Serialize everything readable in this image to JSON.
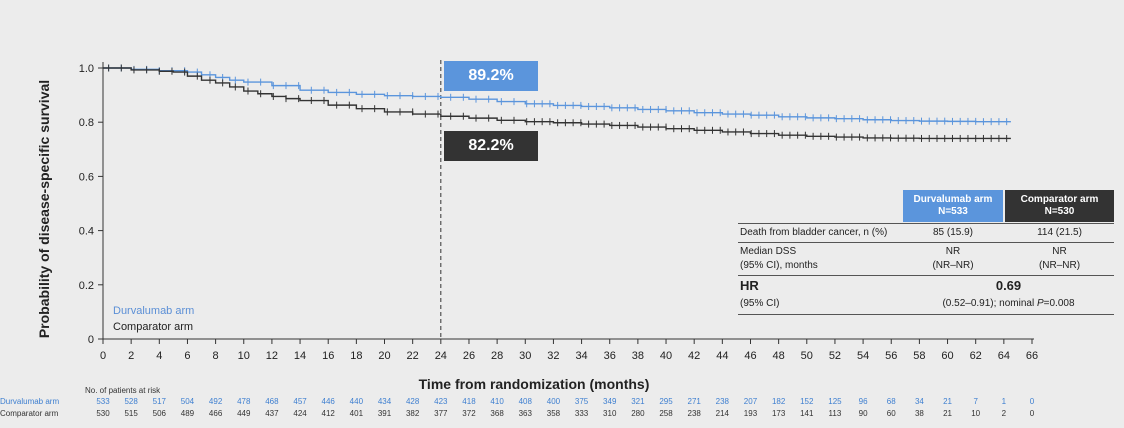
{
  "colors": {
    "durvalumab": "#5b95dc",
    "comparator": "#333333",
    "background": "#ececec"
  },
  "chart_data": {
    "type": "line",
    "title": "",
    "xlabel": "Time from randomization (months)",
    "ylabel": "Probability of disease-specific survival",
    "xlim": [
      0,
      66
    ],
    "ylim": [
      0,
      1.0
    ],
    "x_ticks": [
      0,
      2,
      4,
      6,
      8,
      10,
      12,
      14,
      16,
      18,
      20,
      22,
      24,
      26,
      28,
      30,
      32,
      34,
      36,
      38,
      40,
      42,
      44,
      46,
      48,
      50,
      52,
      54,
      56,
      58,
      60,
      62,
      64,
      66
    ],
    "y_ticks": [
      0,
      0.2,
      0.4,
      0.6,
      0.8,
      1.0
    ],
    "y_tick_labels": [
      "0",
      "0.2",
      "0.4",
      "0.6",
      "0.8",
      "1.0"
    ],
    "reference_line_x": 24,
    "series": [
      {
        "name": "Durvalumab arm",
        "x": [
          0,
          2,
          4,
          5,
          6,
          7,
          8,
          9,
          10,
          12,
          14,
          16,
          18,
          20,
          22,
          24,
          26,
          28,
          30,
          32,
          34,
          36,
          38,
          40,
          42,
          44,
          46,
          48,
          50,
          52,
          54,
          56,
          58,
          60,
          62,
          64.5
        ],
        "y": [
          1.0,
          0.995,
          0.99,
          0.99,
          0.985,
          0.975,
          0.965,
          0.955,
          0.948,
          0.935,
          0.918,
          0.91,
          0.903,
          0.898,
          0.895,
          0.892,
          0.885,
          0.876,
          0.868,
          0.862,
          0.858,
          0.853,
          0.847,
          0.842,
          0.835,
          0.83,
          0.826,
          0.82,
          0.816,
          0.813,
          0.809,
          0.806,
          0.804,
          0.803,
          0.802,
          0.802
        ]
      },
      {
        "name": "Comparator arm",
        "x": [
          0,
          2,
          4,
          5,
          6,
          7,
          8,
          9,
          10,
          11,
          12,
          13,
          14,
          16,
          18,
          20,
          22,
          24,
          26,
          28,
          30,
          32,
          34,
          36,
          38,
          40,
          42,
          44,
          46,
          48,
          50,
          52,
          54,
          56,
          58,
          60,
          62,
          64.5
        ],
        "y": [
          1.0,
          0.993,
          0.988,
          0.985,
          0.97,
          0.955,
          0.945,
          0.93,
          0.915,
          0.905,
          0.895,
          0.887,
          0.88,
          0.863,
          0.85,
          0.838,
          0.83,
          0.822,
          0.815,
          0.807,
          0.802,
          0.798,
          0.793,
          0.788,
          0.782,
          0.776,
          0.77,
          0.764,
          0.758,
          0.752,
          0.748,
          0.745,
          0.742,
          0.741,
          0.74,
          0.74,
          0.74,
          0.74
        ]
      }
    ],
    "callouts": {
      "durvalumab": "89.2%",
      "comparator": "82.2%"
    },
    "legend": [
      "Durvalumab arm",
      "Comparator arm"
    ]
  },
  "risk_table": {
    "title": "No. of patients at risk",
    "durvalumab_label": "Durvalumab arm",
    "comparator_label": "Comparator arm",
    "durvalumab": [
      "533",
      "528",
      "517",
      "504",
      "492",
      "478",
      "468",
      "457",
      "446",
      "440",
      "434",
      "428",
      "423",
      "418",
      "410",
      "408",
      "400",
      "375",
      "349",
      "321",
      "295",
      "271",
      "238",
      "207",
      "182",
      "152",
      "125",
      "96",
      "68",
      "34",
      "21",
      "7",
      "1",
      "0"
    ],
    "comparator": [
      "530",
      "515",
      "506",
      "489",
      "466",
      "449",
      "437",
      "424",
      "412",
      "401",
      "391",
      "382",
      "377",
      "372",
      "368",
      "363",
      "358",
      "333",
      "310",
      "280",
      "258",
      "238",
      "214",
      "193",
      "173",
      "141",
      "113",
      "90",
      "60",
      "38",
      "21",
      "10",
      "2",
      "0"
    ]
  },
  "stats_table": {
    "header_durvalumab": [
      "Durvalumab arm",
      "N=533"
    ],
    "header_comparator": [
      "Comparator arm",
      "N=530"
    ],
    "death_label": "Death from bladder cancer, n (%)",
    "death_durvalumab": "85 (15.9)",
    "death_comparator": "114 (21.5)",
    "median_label_1": "Median DSS",
    "median_label_2": "(95% CI), months",
    "median_durvalumab_1": "NR",
    "median_durvalumab_2": "(NR–NR)",
    "median_comparator_1": "NR",
    "median_comparator_2": "(NR–NR)",
    "hr_label": "HR",
    "hr_ci_label": "(95% CI)",
    "hr_value": "0.69",
    "hr_ci_prefix": "(0.52–0.91); nominal ",
    "hr_p_label": "P",
    "hr_p_value": "=0.008"
  }
}
